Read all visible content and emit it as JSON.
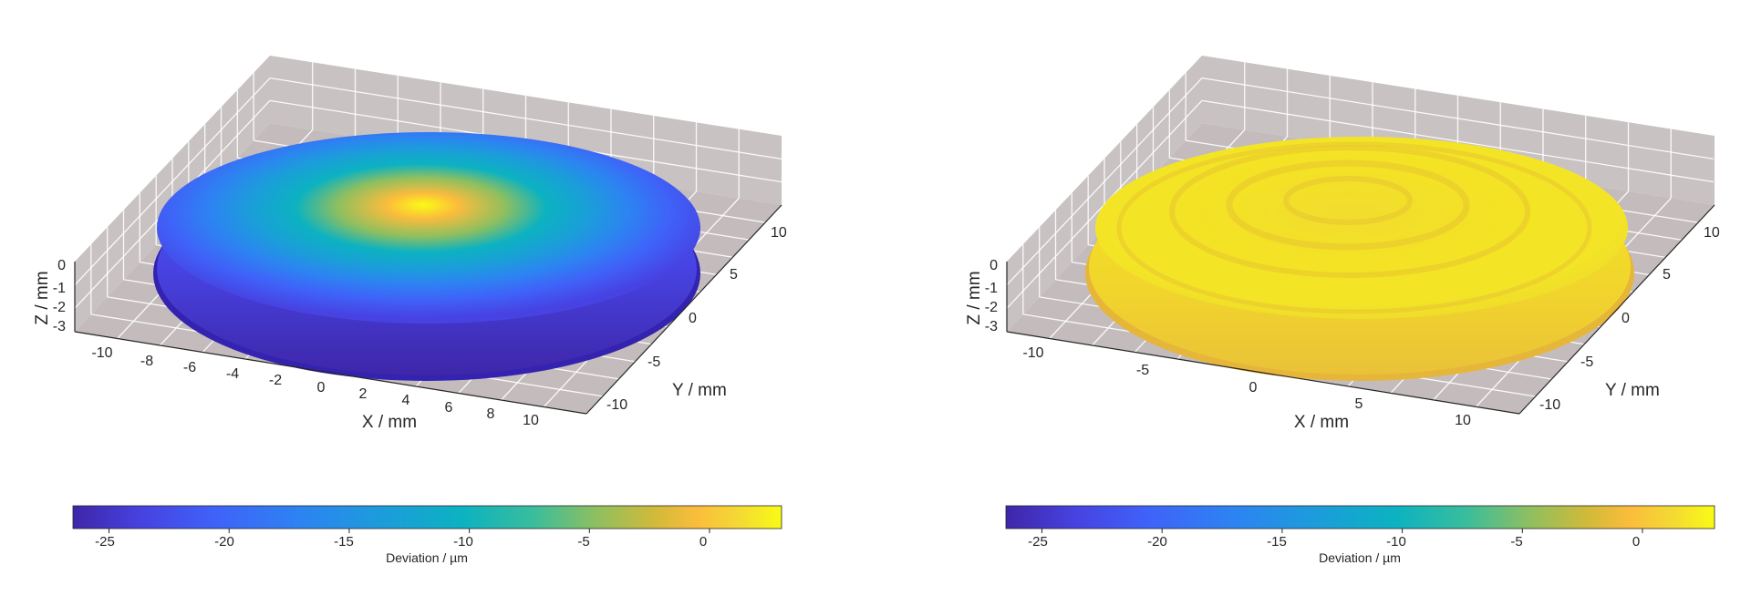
{
  "chart_data": [
    {
      "type": "surface",
      "xlabel": "X / mm",
      "ylabel": "Y / mm",
      "zlabel": "Z / mm",
      "x_ticks": [
        "-10",
        "-8",
        "-6",
        "-4",
        "-2",
        "0",
        "2",
        "4",
        "6",
        "8",
        "10"
      ],
      "y_ticks": [
        "-10",
        "-5",
        "0",
        "5",
        "10"
      ],
      "z_ticks": [
        "-3",
        "-2",
        "-1",
        "0"
      ],
      "xlim": [
        -11,
        11
      ],
      "ylim": [
        -11,
        11
      ],
      "zlim": [
        -3,
        0
      ],
      "grid": true,
      "surface": {
        "shape": "spherical cap",
        "radius": 11.5,
        "center_deviation": 2.5,
        "edge_deviation": -26,
        "pattern": "radial gradient"
      },
      "colorbar": {
        "label": "Deviation / µm",
        "ticks": [
          "-25",
          "-20",
          "-15",
          "-10",
          "-5",
          "0"
        ],
        "range": [
          -26.5,
          3
        ],
        "location": "bottom",
        "colormap": "parula"
      }
    },
    {
      "type": "surface",
      "xlabel": "X / mm",
      "ylabel": "Y / mm",
      "zlabel": "Z / mm",
      "x_ticks": [
        "-10",
        "-5",
        "0",
        "5",
        "10"
      ],
      "y_ticks": [
        "-10",
        "-5",
        "0",
        "5",
        "10"
      ],
      "z_ticks": [
        "-3",
        "-2",
        "-1",
        "0"
      ],
      "xlim": [
        -11,
        11
      ],
      "ylim": [
        -11,
        11
      ],
      "zlim": [
        -3,
        0
      ],
      "grid": true,
      "surface": {
        "shape": "spherical cap",
        "radius": 11.5,
        "center_deviation": 1.5,
        "edge_deviation": 0,
        "pattern": "concentric rings"
      },
      "colorbar": {
        "label": "Deviation / µm",
        "ticks": [
          "-25",
          "-20",
          "-15",
          "-10",
          "-5",
          "0"
        ],
        "range": [
          -26.5,
          3
        ],
        "location": "bottom",
        "colormap": "parula"
      }
    }
  ]
}
